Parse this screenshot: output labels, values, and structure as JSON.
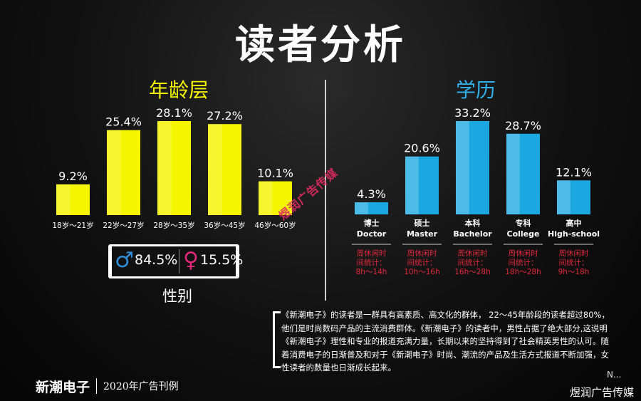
{
  "page": {
    "title": "读者分析",
    "description": "《新潮电子》的读者是一群具有高素质、高文化的群体， 22～45年龄段的读者超过80%，他们是时尚数码产品的主流消费群体。《新潮电子》的读者中，男性占据了绝大部分,这说明《新潮电子》理性和专业的报道充满力量，长期以来的坚持得到了社会精英男性的认可。随着消费电子的日渐普及和对于《新潮电子》时尚、潮流的产品及生活方式报道不断加强，女性读者的数量也日渐成长起来。",
    "footer_brand": "新潮电子",
    "footer_sub": "2020年广告刊例",
    "watermark": "煜润广告传媒",
    "corner_mark": "煜润广告传媒",
    "page_num": "N..."
  },
  "colors": {
    "age_bar": "#f5f500",
    "edu_bar": "#1ba8e0",
    "age_title": "#f5f500",
    "edu_title": "#2fb0ea",
    "stat_red": "#e0283c",
    "male": "#2f8fd8",
    "female": "#e0287a"
  },
  "gender": {
    "male_icon": "male-icon",
    "male_value": "84.5%",
    "female_icon": "female-icon",
    "female_value": "15.5%",
    "label": "性别"
  },
  "chart_data": [
    {
      "type": "bar",
      "title": "年龄层",
      "categories": [
        "18岁～21岁",
        "22岁～27岁",
        "28岁～35岁",
        "36岁～45岁",
        "46岁～60岁"
      ],
      "values": [
        9.2,
        25.4,
        28.1,
        27.2,
        10.1
      ],
      "labels": [
        "9.2%",
        "25.4%",
        "28.1%",
        "27.2%",
        "10.1%"
      ],
      "ylim": [
        0,
        28.1
      ]
    },
    {
      "type": "bar",
      "title": "学历",
      "categories": [
        {
          "cn": "博士",
          "en": "Doctor",
          "stat": [
            "周休闲时",
            "间统计：",
            "8h～14h"
          ]
        },
        {
          "cn": "硕士",
          "en": "Master",
          "stat": [
            "周休闲时",
            "间统计：",
            "10h～16h"
          ]
        },
        {
          "cn": "本科",
          "en": "Bachelor",
          "stat": [
            "周休闲时",
            "间统计：",
            "16h～28h"
          ]
        },
        {
          "cn": "专科",
          "en": "College",
          "stat": [
            "周休闲时",
            "间统计：",
            "18h～28h"
          ]
        },
        {
          "cn": "高中",
          "en": "High-school",
          "stat": [
            "周休闲时",
            "间统计：",
            "9h～18h"
          ]
        }
      ],
      "values": [
        4.3,
        20.6,
        33.2,
        28.7,
        12.1
      ],
      "labels": [
        "4.3%",
        "20.6%",
        "33.2%",
        "28.7%",
        "12.1%"
      ],
      "ylim": [
        0,
        33.2
      ]
    }
  ]
}
